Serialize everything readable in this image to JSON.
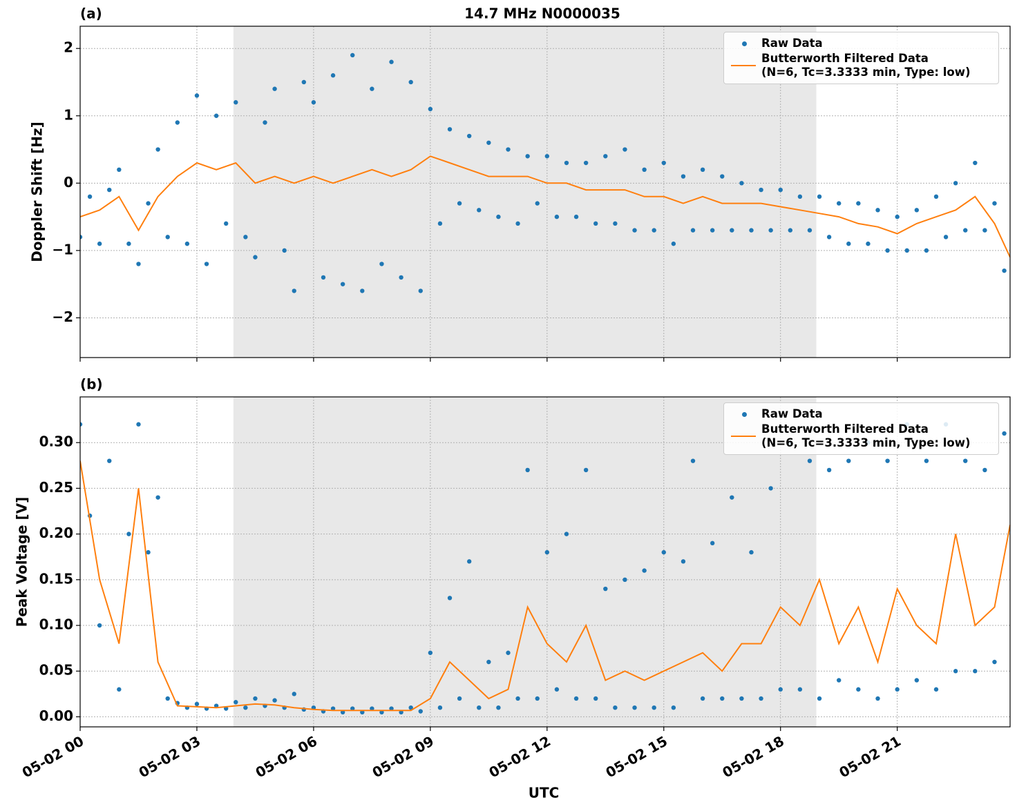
{
  "chart_data": [
    {
      "type": "line",
      "title": "14.7 MHz N0000035",
      "panel_label": "(a)",
      "ylabel": "Doppler Shift [Hz]",
      "xlim": [
        0,
        23.9
      ],
      "ylim": [
        -2.59,
        2.33
      ],
      "xticks": [
        0,
        3,
        6,
        9,
        12,
        15,
        18,
        21
      ],
      "yticks": [
        {
          "value": -2,
          "label": "−2"
        },
        {
          "value": -1,
          "label": "−1"
        },
        0,
        1,
        2
      ],
      "grid": true,
      "legend": "upper right",
      "shaded_span": [
        3.94,
        18.92
      ],
      "shaded_color": "#e8e8e8",
      "series": [
        {
          "name": "Raw Data",
          "kind": "scatter",
          "color": "#1f77b4",
          "x": [
            0,
            0.25,
            0.5,
            0.75,
            1,
            1.25,
            1.5,
            1.75,
            2,
            2.25,
            2.5,
            2.75,
            3,
            3.25,
            3.5,
            3.75,
            4,
            4.25,
            4.5,
            4.75,
            5,
            5.25,
            5.5,
            5.75,
            6,
            6.25,
            6.5,
            6.75,
            7,
            7.25,
            7.5,
            7.75,
            8,
            8.25,
            8.5,
            8.75,
            9,
            9.25,
            9.5,
            9.75,
            10,
            10.25,
            10.5,
            10.75,
            11,
            11.25,
            11.5,
            11.75,
            12,
            12.25,
            12.5,
            12.75,
            13,
            13.25,
            13.5,
            13.75,
            14,
            14.25,
            14.5,
            14.75,
            15,
            15.25,
            15.5,
            15.75,
            16,
            16.25,
            16.5,
            16.75,
            17,
            17.25,
            17.5,
            17.75,
            18,
            18.25,
            18.5,
            18.75,
            19,
            19.25,
            19.5,
            19.75,
            20,
            20.25,
            20.5,
            20.75,
            21,
            21.25,
            21.5,
            21.75,
            22,
            22.25,
            22.5,
            22.75,
            23,
            23.25,
            23.5,
            23.75
          ],
          "values": [
            -0.8,
            -0.2,
            -0.9,
            -0.1,
            0.2,
            -0.9,
            -1.2,
            -0.3,
            0.5,
            -0.8,
            0.9,
            -0.9,
            1.3,
            -1.2,
            1.0,
            -0.6,
            1.2,
            -0.8,
            -1.1,
            0.9,
            1.4,
            -1.0,
            -1.6,
            1.5,
            1.2,
            -1.4,
            1.6,
            -1.5,
            1.9,
            -1.6,
            1.4,
            -1.2,
            1.8,
            -1.4,
            1.5,
            -1.6,
            1.1,
            -0.6,
            0.8,
            -0.3,
            0.7,
            -0.4,
            0.6,
            -0.5,
            0.5,
            -0.6,
            0.4,
            -0.3,
            0.4,
            -0.5,
            0.3,
            -0.5,
            0.3,
            -0.6,
            0.4,
            -0.6,
            0.5,
            -0.7,
            0.2,
            -0.7,
            0.3,
            -0.9,
            0.1,
            -0.7,
            0.2,
            -0.7,
            0.1,
            -0.7,
            0.0,
            -0.7,
            -0.1,
            -0.7,
            -0.1,
            -0.7,
            -0.2,
            -0.7,
            -0.2,
            -0.8,
            -0.3,
            -0.9,
            -0.3,
            -0.9,
            -0.4,
            -1.0,
            -0.5,
            -1.0,
            -0.4,
            -1.0,
            -0.2,
            -0.8,
            0.0,
            -0.7,
            0.3,
            -0.7,
            -0.3,
            -1.3
          ]
        },
        {
          "name": "Butterworth Filtered Data\n(N=6, Tc=3.3333 min, Type: low)",
          "kind": "line",
          "color": "#ff7f0e",
          "x": [
            0,
            0.5,
            1,
            1.5,
            2,
            2.5,
            3,
            3.5,
            4,
            4.5,
            5,
            5.5,
            6,
            6.5,
            7,
            7.5,
            8,
            8.5,
            9,
            9.5,
            10,
            10.5,
            11,
            11.5,
            12,
            12.5,
            13,
            13.5,
            14,
            14.5,
            15,
            15.5,
            16,
            16.5,
            17,
            17.5,
            18,
            18.5,
            19,
            19.5,
            20,
            20.5,
            21,
            21.5,
            22,
            22.5,
            23,
            23.5,
            23.9
          ],
          "values": [
            -0.5,
            -0.4,
            -0.2,
            -0.7,
            -0.2,
            0.1,
            0.3,
            0.2,
            0.3,
            0.0,
            0.1,
            0.0,
            0.1,
            0.0,
            0.1,
            0.2,
            0.1,
            0.2,
            0.4,
            0.3,
            0.2,
            0.1,
            0.1,
            0.1,
            0.0,
            0.0,
            -0.1,
            -0.1,
            -0.1,
            -0.2,
            -0.2,
            -0.3,
            -0.2,
            -0.3,
            -0.3,
            -0.3,
            -0.35,
            -0.4,
            -0.45,
            -0.5,
            -0.6,
            -0.65,
            -0.75,
            -0.6,
            -0.5,
            -0.4,
            -0.2,
            -0.6,
            -1.1
          ]
        }
      ]
    },
    {
      "type": "line",
      "panel_label": "(b)",
      "ylabel": "Peak Voltage [V]",
      "xlabel": "UTC",
      "xlim": [
        0,
        23.9
      ],
      "ylim": [
        -0.011,
        0.35
      ],
      "xticks": [
        {
          "value": 0,
          "label": "05-02 00"
        },
        {
          "value": 3,
          "label": "05-02 03"
        },
        {
          "value": 6,
          "label": "05-02 06"
        },
        {
          "value": 9,
          "label": "05-02 09"
        },
        {
          "value": 12,
          "label": "05-02 12"
        },
        {
          "value": 15,
          "label": "05-02 15"
        },
        {
          "value": 18,
          "label": "05-02 18"
        },
        {
          "value": 21,
          "label": "05-02 21"
        }
      ],
      "yticks": [
        {
          "value": 0,
          "label": "0.00"
        },
        {
          "value": 0.05,
          "label": "0.05"
        },
        {
          "value": 0.1,
          "label": "0.10"
        },
        {
          "value": 0.15,
          "label": "0.15"
        },
        {
          "value": 0.2,
          "label": "0.20"
        },
        {
          "value": 0.25,
          "label": "0.25"
        },
        {
          "value": 0.3,
          "label": "0.30"
        }
      ],
      "grid": true,
      "legend": "upper right",
      "shaded_span": [
        3.94,
        18.92
      ],
      "shaded_color": "#e8e8e8",
      "series": [
        {
          "name": "Raw Data",
          "kind": "scatter",
          "color": "#1f77b4",
          "x": [
            0,
            0.25,
            0.5,
            0.75,
            1,
            1.25,
            1.5,
            1.75,
            2,
            2.25,
            2.5,
            2.75,
            3,
            3.25,
            3.5,
            3.75,
            4,
            4.25,
            4.5,
            4.75,
            5,
            5.25,
            5.5,
            5.75,
            6,
            6.25,
            6.5,
            6.75,
            7,
            7.25,
            7.5,
            7.75,
            8,
            8.25,
            8.5,
            8.75,
            9,
            9.25,
            9.5,
            9.75,
            10,
            10.25,
            10.5,
            10.75,
            11,
            11.25,
            11.5,
            11.75,
            12,
            12.25,
            12.5,
            12.75,
            13,
            13.25,
            13.5,
            13.75,
            14,
            14.25,
            14.5,
            14.75,
            15,
            15.25,
            15.5,
            15.75,
            16,
            16.25,
            16.5,
            16.75,
            17,
            17.25,
            17.5,
            17.75,
            18,
            18.25,
            18.5,
            18.75,
            19,
            19.25,
            19.5,
            19.75,
            20,
            20.25,
            20.5,
            20.75,
            21,
            21.25,
            21.5,
            21.75,
            22,
            22.25,
            22.5,
            22.75,
            23,
            23.25,
            23.5,
            23.75
          ],
          "values": [
            0.32,
            0.22,
            0.1,
            0.28,
            0.03,
            0.2,
            0.32,
            0.18,
            0.24,
            0.02,
            0.015,
            0.01,
            0.014,
            0.009,
            0.012,
            0.009,
            0.016,
            0.01,
            0.02,
            0.012,
            0.018,
            0.01,
            0.025,
            0.008,
            0.01,
            0.006,
            0.009,
            0.005,
            0.009,
            0.005,
            0.009,
            0.005,
            0.009,
            0.005,
            0.01,
            0.006,
            0.07,
            0.01,
            0.13,
            0.02,
            0.17,
            0.01,
            0.06,
            0.01,
            0.07,
            0.02,
            0.27,
            0.02,
            0.18,
            0.03,
            0.2,
            0.02,
            0.27,
            0.02,
            0.14,
            0.01,
            0.15,
            0.01,
            0.16,
            0.01,
            0.18,
            0.01,
            0.17,
            0.28,
            0.02,
            0.19,
            0.02,
            0.24,
            0.02,
            0.18,
            0.02,
            0.25,
            0.03,
            0.3,
            0.03,
            0.28,
            0.02,
            0.27,
            0.04,
            0.28,
            0.03,
            0.3,
            0.02,
            0.28,
            0.03,
            0.32,
            0.04,
            0.28,
            0.03,
            0.32,
            0.05,
            0.28,
            0.05,
            0.27,
            0.06,
            0.31
          ]
        },
        {
          "name": "Butterworth Filtered Data\n(N=6, Tc=3.3333 min, Type: low)",
          "kind": "line",
          "color": "#ff7f0e",
          "x": [
            0,
            0.5,
            1,
            1.5,
            2,
            2.5,
            3,
            3.5,
            4,
            4.5,
            5,
            5.5,
            6,
            6.5,
            7,
            7.5,
            8,
            8.5,
            9,
            9.5,
            10,
            10.5,
            11,
            11.5,
            12,
            12.5,
            13,
            13.5,
            14,
            14.5,
            15,
            15.5,
            16,
            16.5,
            17,
            17.5,
            18,
            18.5,
            19,
            19.5,
            20,
            20.5,
            21,
            21.5,
            22,
            22.5,
            23,
            23.5,
            23.9
          ],
          "values": [
            0.28,
            0.15,
            0.08,
            0.25,
            0.06,
            0.012,
            0.011,
            0.01,
            0.012,
            0.014,
            0.013,
            0.01,
            0.008,
            0.007,
            0.007,
            0.007,
            0.007,
            0.007,
            0.02,
            0.06,
            0.04,
            0.02,
            0.03,
            0.12,
            0.08,
            0.06,
            0.1,
            0.04,
            0.05,
            0.04,
            0.05,
            0.06,
            0.07,
            0.05,
            0.08,
            0.08,
            0.12,
            0.1,
            0.15,
            0.08,
            0.12,
            0.06,
            0.14,
            0.1,
            0.08,
            0.2,
            0.1,
            0.12,
            0.21
          ]
        }
      ]
    }
  ]
}
